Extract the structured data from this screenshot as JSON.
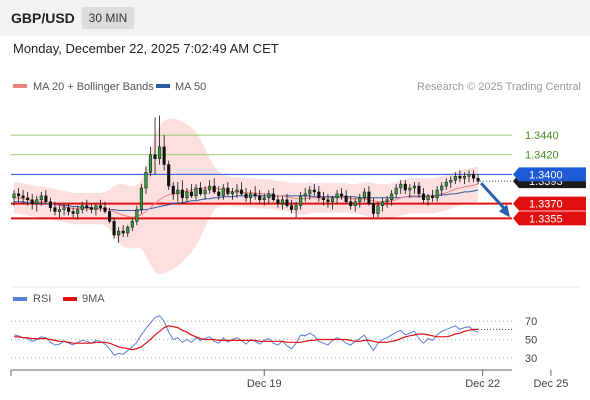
{
  "header": {
    "pair": "GBP/USD",
    "timeframe": "30 MIN"
  },
  "datetime": "Monday, December 22, 2025 7:02:49 AM CET",
  "legend": {
    "ma": "MA 20 + Bollinger Bands",
    "ma50": "MA 50",
    "credit": "Research © 2025 Trading Central",
    "rsi": "RSI",
    "rsi9": "9MA"
  },
  "colors": {
    "ma_bb": "#f08080",
    "ma50": "#2c5aa0",
    "support": "#e01010",
    "target_green": "#7bbf45",
    "pivot_blue": "#1e5bd6",
    "arrow": "#2a5fa8",
    "rsi": "#5b7fd6",
    "rsi_ma": "#e01010",
    "band_fill": "#fbdada"
  },
  "chart_data": [
    {
      "type": "candlestick",
      "title": "",
      "ylim": [
        1.329,
        1.348
      ],
      "levels": [
        {
          "value": 1.344,
          "label": "1.3440",
          "kind": "resistance"
        },
        {
          "value": 1.342,
          "label": "1.3420",
          "kind": "resistance"
        },
        {
          "value": 1.34,
          "label": "1.3400",
          "kind": "pivot"
        },
        {
          "value": 1.337,
          "label": "1.3370",
          "kind": "support"
        },
        {
          "value": 1.3355,
          "label": "1.3355",
          "kind": "support"
        }
      ],
      "last_price": 1.3393,
      "last_price_label": "1.3393",
      "x_labels": [
        {
          "index": 55,
          "label": "Dec 19"
        },
        {
          "index": 103,
          "label": "Dec 22"
        },
        {
          "index": 118,
          "label": "Dec 25"
        }
      ],
      "candles": [
        [
          1.3376,
          1.3384,
          1.3368,
          1.338
        ],
        [
          1.338,
          1.3386,
          1.3372,
          1.3378
        ],
        [
          1.3378,
          1.3384,
          1.337,
          1.3376
        ],
        [
          1.3376,
          1.3382,
          1.3368,
          1.3374
        ],
        [
          1.3374,
          1.338,
          1.3364,
          1.337
        ],
        [
          1.337,
          1.3378,
          1.3362,
          1.3374
        ],
        [
          1.3374,
          1.3382,
          1.3368,
          1.3378
        ],
        [
          1.3378,
          1.3384,
          1.337,
          1.3372
        ],
        [
          1.3372,
          1.3376,
          1.3362,
          1.3366
        ],
        [
          1.3366,
          1.3372,
          1.3358,
          1.3362
        ],
        [
          1.3362,
          1.3368,
          1.3356,
          1.3364
        ],
        [
          1.3364,
          1.337,
          1.3358,
          1.3366
        ],
        [
          1.3366,
          1.337,
          1.3358,
          1.3362
        ],
        [
          1.3362,
          1.3366,
          1.3356,
          1.336
        ],
        [
          1.336,
          1.3368,
          1.3354,
          1.3364
        ],
        [
          1.3364,
          1.3372,
          1.336,
          1.3368
        ],
        [
          1.3368,
          1.3374,
          1.3362,
          1.3366
        ],
        [
          1.3366,
          1.337,
          1.336,
          1.3364
        ],
        [
          1.3364,
          1.337,
          1.3358,
          1.3368
        ],
        [
          1.3368,
          1.3374,
          1.3362,
          1.3366
        ],
        [
          1.3366,
          1.3372,
          1.336,
          1.3362
        ],
        [
          1.3362,
          1.3366,
          1.335,
          1.3352
        ],
        [
          1.3352,
          1.3356,
          1.3334,
          1.3338
        ],
        [
          1.3338,
          1.3346,
          1.333,
          1.3342
        ],
        [
          1.3342,
          1.3348,
          1.3336,
          1.334
        ],
        [
          1.334,
          1.3348,
          1.3336,
          1.3346
        ],
        [
          1.3346,
          1.3356,
          1.3342,
          1.3352
        ],
        [
          1.3352,
          1.3368,
          1.3348,
          1.3364
        ],
        [
          1.3364,
          1.339,
          1.336,
          1.3386
        ],
        [
          1.3386,
          1.3408,
          1.338,
          1.3402
        ],
        [
          1.3402,
          1.3428,
          1.3398,
          1.342
        ],
        [
          1.342,
          1.3458,
          1.34,
          1.3416
        ],
        [
          1.3416,
          1.346,
          1.341,
          1.3428
        ],
        [
          1.3428,
          1.344,
          1.3404,
          1.341
        ],
        [
          1.341,
          1.3414,
          1.3384,
          1.3388
        ],
        [
          1.3388,
          1.3392,
          1.3374,
          1.338
        ],
        [
          1.338,
          1.3392,
          1.3372,
          1.3384
        ],
        [
          1.3384,
          1.3394,
          1.337,
          1.3376
        ],
        [
          1.3376,
          1.3386,
          1.3372,
          1.3382
        ],
        [
          1.3382,
          1.339,
          1.3376,
          1.3378
        ],
        [
          1.3378,
          1.339,
          1.3374,
          1.3386
        ],
        [
          1.3386,
          1.3392,
          1.3378,
          1.338
        ],
        [
          1.338,
          1.3388,
          1.3374,
          1.3384
        ],
        [
          1.3384,
          1.3394,
          1.338,
          1.3388
        ],
        [
          1.3388,
          1.3396,
          1.338,
          1.3382
        ],
        [
          1.3382,
          1.3388,
          1.3374,
          1.3378
        ],
        [
          1.3378,
          1.339,
          1.3374,
          1.3386
        ],
        [
          1.3386,
          1.3392,
          1.3378,
          1.338
        ],
        [
          1.338,
          1.3386,
          1.3374,
          1.3382
        ],
        [
          1.3382,
          1.339,
          1.3376,
          1.3384
        ],
        [
          1.3384,
          1.3392,
          1.3378,
          1.338
        ],
        [
          1.338,
          1.3386,
          1.3372,
          1.3376
        ],
        [
          1.3376,
          1.3384,
          1.337,
          1.338
        ],
        [
          1.338,
          1.3388,
          1.3374,
          1.3378
        ],
        [
          1.3378,
          1.3384,
          1.337,
          1.3374
        ],
        [
          1.3374,
          1.338,
          1.3368,
          1.3376
        ],
        [
          1.3376,
          1.3384,
          1.337,
          1.338
        ],
        [
          1.338,
          1.3386,
          1.3372,
          1.3374
        ],
        [
          1.3374,
          1.3378,
          1.3366,
          1.337
        ],
        [
          1.337,
          1.3378,
          1.3364,
          1.3374
        ],
        [
          1.3374,
          1.338,
          1.3366,
          1.3368
        ],
        [
          1.3368,
          1.3374,
          1.336,
          1.3364
        ],
        [
          1.3364,
          1.3372,
          1.3356,
          1.3368
        ],
        [
          1.3368,
          1.3382,
          1.3364,
          1.3378
        ],
        [
          1.3378,
          1.3386,
          1.3372,
          1.338
        ],
        [
          1.338,
          1.3388,
          1.3374,
          1.3384
        ],
        [
          1.3384,
          1.339,
          1.3378,
          1.3382
        ],
        [
          1.3382,
          1.3388,
          1.3372,
          1.3376
        ],
        [
          1.3376,
          1.3382,
          1.3368,
          1.3374
        ],
        [
          1.3374,
          1.338,
          1.3366,
          1.3372
        ],
        [
          1.3372,
          1.3378,
          1.3364,
          1.3376
        ],
        [
          1.3376,
          1.3384,
          1.337,
          1.338
        ],
        [
          1.338,
          1.3386,
          1.3374,
          1.3378
        ],
        [
          1.3378,
          1.3384,
          1.337,
          1.3372
        ],
        [
          1.3372,
          1.3378,
          1.3364,
          1.3368
        ],
        [
          1.3368,
          1.3376,
          1.3362,
          1.3372
        ],
        [
          1.3372,
          1.338,
          1.3366,
          1.3376
        ],
        [
          1.3376,
          1.3386,
          1.3372,
          1.3382
        ],
        [
          1.3382,
          1.3388,
          1.3368,
          1.337
        ],
        [
          1.337,
          1.3376,
          1.3356,
          1.336
        ],
        [
          1.336,
          1.3372,
          1.3356,
          1.3368
        ],
        [
          1.3368,
          1.3376,
          1.3362,
          1.3372
        ],
        [
          1.3372,
          1.3378,
          1.3366,
          1.3374
        ],
        [
          1.3374,
          1.3384,
          1.3368,
          1.338
        ],
        [
          1.338,
          1.339,
          1.3376,
          1.3386
        ],
        [
          1.3386,
          1.3394,
          1.338,
          1.339
        ],
        [
          1.339,
          1.3394,
          1.338,
          1.3384
        ],
        [
          1.3384,
          1.339,
          1.3376,
          1.3386
        ],
        [
          1.3386,
          1.3392,
          1.338,
          1.3388
        ],
        [
          1.3388,
          1.3392,
          1.3376,
          1.338
        ],
        [
          1.338,
          1.3386,
          1.337,
          1.3374
        ],
        [
          1.3374,
          1.338,
          1.3368,
          1.3378
        ],
        [
          1.3378,
          1.3384,
          1.3372,
          1.3376
        ],
        [
          1.3376,
          1.3388,
          1.3372,
          1.3384
        ],
        [
          1.3384,
          1.3392,
          1.3378,
          1.3388
        ],
        [
          1.3388,
          1.3396,
          1.3384,
          1.3392
        ],
        [
          1.3392,
          1.3398,
          1.3386,
          1.3394
        ],
        [
          1.3394,
          1.3402,
          1.339,
          1.3398
        ],
        [
          1.3398,
          1.3404,
          1.3392,
          1.3396
        ],
        [
          1.3396,
          1.3402,
          1.339,
          1.3398
        ],
        [
          1.3398,
          1.3404,
          1.3392,
          1.34
        ],
        [
          1.34,
          1.3404,
          1.3392,
          1.3396
        ],
        [
          1.3396,
          1.34,
          1.339,
          1.3393
        ]
      ],
      "ma20": [
        1.3376,
        1.3376,
        1.3375,
        1.3374,
        1.3373,
        1.3372,
        1.3372,
        1.3371,
        1.337,
        1.3369,
        1.3368,
        1.3367,
        1.3366,
        1.3365,
        1.3365,
        1.3365,
        1.3365,
        1.3365,
        1.3365,
        1.3365,
        1.3365,
        1.3364,
        1.3362,
        1.336,
        1.3358,
        1.3357,
        1.3356,
        1.3357,
        1.3359,
        1.3362,
        1.3366,
        1.337,
        1.3374,
        1.3377,
        1.3379,
        1.338,
        1.3381,
        1.3382,
        1.3383,
        1.3384,
        1.3385,
        1.3386,
        1.3386,
        1.3386,
        1.3386,
        1.3385,
        1.3384,
        1.3383,
        1.3382,
        1.3382,
        1.3382,
        1.3381,
        1.3381,
        1.3381,
        1.338,
        1.338,
        1.338,
        1.3379,
        1.3378,
        1.3378,
        1.3377,
        1.3376,
        1.3375,
        1.3375,
        1.3375,
        1.3376,
        1.3376,
        1.3376,
        1.3376,
        1.3376,
        1.3376,
        1.3376,
        1.3376,
        1.3376,
        1.3375,
        1.3375,
        1.3375,
        1.3375,
        1.3374,
        1.3373,
        1.3372,
        1.3372,
        1.3372,
        1.3373,
        1.3374,
        1.3376,
        1.3377,
        1.3378,
        1.3378,
        1.3378,
        1.3378,
        1.3378,
        1.3378,
        1.3379,
        1.338,
        1.3381,
        1.3383,
        1.3385,
        1.3386,
        1.3387,
        1.3388,
        1.3389,
        1.339
      ],
      "ma50": [
        1.3372,
        1.3372,
        1.3372,
        1.3371,
        1.3371,
        1.3371,
        1.337,
        1.337,
        1.337,
        1.3369,
        1.3369,
        1.3368,
        1.3368,
        1.3367,
        1.3367,
        1.3366,
        1.3366,
        1.3366,
        1.3365,
        1.3365,
        1.3365,
        1.3364,
        1.3364,
        1.3363,
        1.3363,
        1.3363,
        1.3363,
        1.3363,
        1.3364,
        1.3364,
        1.3365,
        1.3366,
        1.3367,
        1.3368,
        1.3369,
        1.337,
        1.3371,
        1.3371,
        1.3372,
        1.3373,
        1.3373,
        1.3374,
        1.3375,
        1.3375,
        1.3376,
        1.3376,
        1.3377,
        1.3377,
        1.3377,
        1.3378,
        1.3378,
        1.3378,
        1.3378,
        1.3378,
        1.3378,
        1.3378,
        1.3378,
        1.3378,
        1.3378,
        1.3378,
        1.3378,
        1.3378,
        1.3378,
        1.3378,
        1.3378,
        1.3378,
        1.3377,
        1.3377,
        1.3377,
        1.3377,
        1.3377,
        1.3377,
        1.3377,
        1.3377,
        1.3377,
        1.3377,
        1.3376,
        1.3376,
        1.3376,
        1.3376,
        1.3376,
        1.3376,
        1.3376,
        1.3376,
        1.3376,
        1.3376,
        1.3377,
        1.3377,
        1.3377,
        1.3377,
        1.3377,
        1.3378,
        1.3378,
        1.3378,
        1.3379,
        1.3379,
        1.338,
        1.338,
        1.3381,
        1.3382,
        1.3382,
        1.3383,
        1.3384
      ],
      "bb_width": [
        0.0016,
        0.0016,
        0.0016,
        0.0016,
        0.0016,
        0.0016,
        0.0016,
        0.0016,
        0.0016,
        0.0016,
        0.0016,
        0.0016,
        0.0016,
        0.0016,
        0.0016,
        0.0016,
        0.0016,
        0.0016,
        0.0016,
        0.0016,
        0.0017,
        0.002,
        0.0026,
        0.003,
        0.0032,
        0.0032,
        0.0032,
        0.0032,
        0.0035,
        0.0045,
        0.0058,
        0.007,
        0.0076,
        0.0078,
        0.0078,
        0.0077,
        0.0075,
        0.0072,
        0.0068,
        0.0064,
        0.0058,
        0.005,
        0.004,
        0.003,
        0.0022,
        0.0018,
        0.0016,
        0.0015,
        0.0015,
        0.0015,
        0.0015,
        0.0015,
        0.0015,
        0.0015,
        0.0015,
        0.0015,
        0.0015,
        0.0015,
        0.0015,
        0.0015,
        0.0015,
        0.0015,
        0.0016,
        0.0016,
        0.0016,
        0.0016,
        0.0015,
        0.0015,
        0.0015,
        0.0015,
        0.0015,
        0.0015,
        0.0015,
        0.0015,
        0.0015,
        0.0015,
        0.0016,
        0.0017,
        0.0018,
        0.0018,
        0.0018,
        0.0018,
        0.0018,
        0.0018,
        0.0018,
        0.0018,
        0.0018,
        0.0018,
        0.0018,
        0.0018,
        0.0018,
        0.0018,
        0.0018,
        0.0018,
        0.0018,
        0.0018,
        0.0018,
        0.0018,
        0.0018,
        0.0018,
        0.0018,
        0.0018,
        0.0018
      ],
      "forecast_arrow": {
        "from_index": 102,
        "from_value": 1.3393,
        "to_value": 1.3356
      }
    },
    {
      "type": "line",
      "title": "",
      "ylim": [
        20,
        80
      ],
      "ticks": [
        {
          "value": 70,
          "label": "70"
        },
        {
          "value": 50,
          "label": "50"
        },
        {
          "value": 30,
          "label": "30"
        }
      ],
      "series": [
        {
          "name": "RSI",
          "values": [
            55,
            54,
            52,
            51,
            48,
            50,
            53,
            52,
            47,
            44,
            45,
            48,
            46,
            44,
            47,
            49,
            48,
            46,
            49,
            48,
            45,
            40,
            33,
            35,
            34,
            38,
            42,
            47,
            55,
            62,
            68,
            74,
            76,
            70,
            58,
            50,
            52,
            47,
            50,
            47,
            52,
            49,
            51,
            53,
            48,
            46,
            52,
            47,
            50,
            52,
            49,
            45,
            50,
            48,
            45,
            49,
            51,
            46,
            44,
            48,
            43,
            40,
            46,
            55,
            54,
            57,
            54,
            48,
            46,
            44,
            49,
            52,
            50,
            46,
            44,
            48,
            51,
            55,
            45,
            38,
            46,
            50,
            52,
            55,
            58,
            60,
            55,
            57,
            59,
            51,
            46,
            51,
            49,
            55,
            59,
            61,
            63,
            65,
            61,
            63,
            64,
            60,
            58
          ]
        },
        {
          "name": "9MA",
          "values": [
            53,
            53,
            52,
            52,
            51,
            51,
            51,
            51,
            50,
            49,
            48,
            48,
            47,
            46,
            46,
            46,
            46,
            46,
            47,
            47,
            47,
            46,
            44,
            42,
            41,
            40,
            39,
            40,
            42,
            46,
            50,
            55,
            59,
            63,
            65,
            64,
            63,
            60,
            58,
            55,
            53,
            51,
            50,
            50,
            50,
            49,
            49,
            49,
            49,
            49,
            49,
            49,
            49,
            49,
            48,
            48,
            48,
            48,
            48,
            48,
            47,
            47,
            47,
            47,
            48,
            49,
            49,
            50,
            50,
            50,
            50,
            50,
            50,
            50,
            49,
            48,
            48,
            49,
            49,
            48,
            47,
            47,
            47,
            48,
            49,
            51,
            53,
            54,
            55,
            56,
            56,
            55,
            54,
            53,
            53,
            53,
            54,
            56,
            57,
            59,
            60,
            61,
            61
          ]
        }
      ]
    }
  ]
}
